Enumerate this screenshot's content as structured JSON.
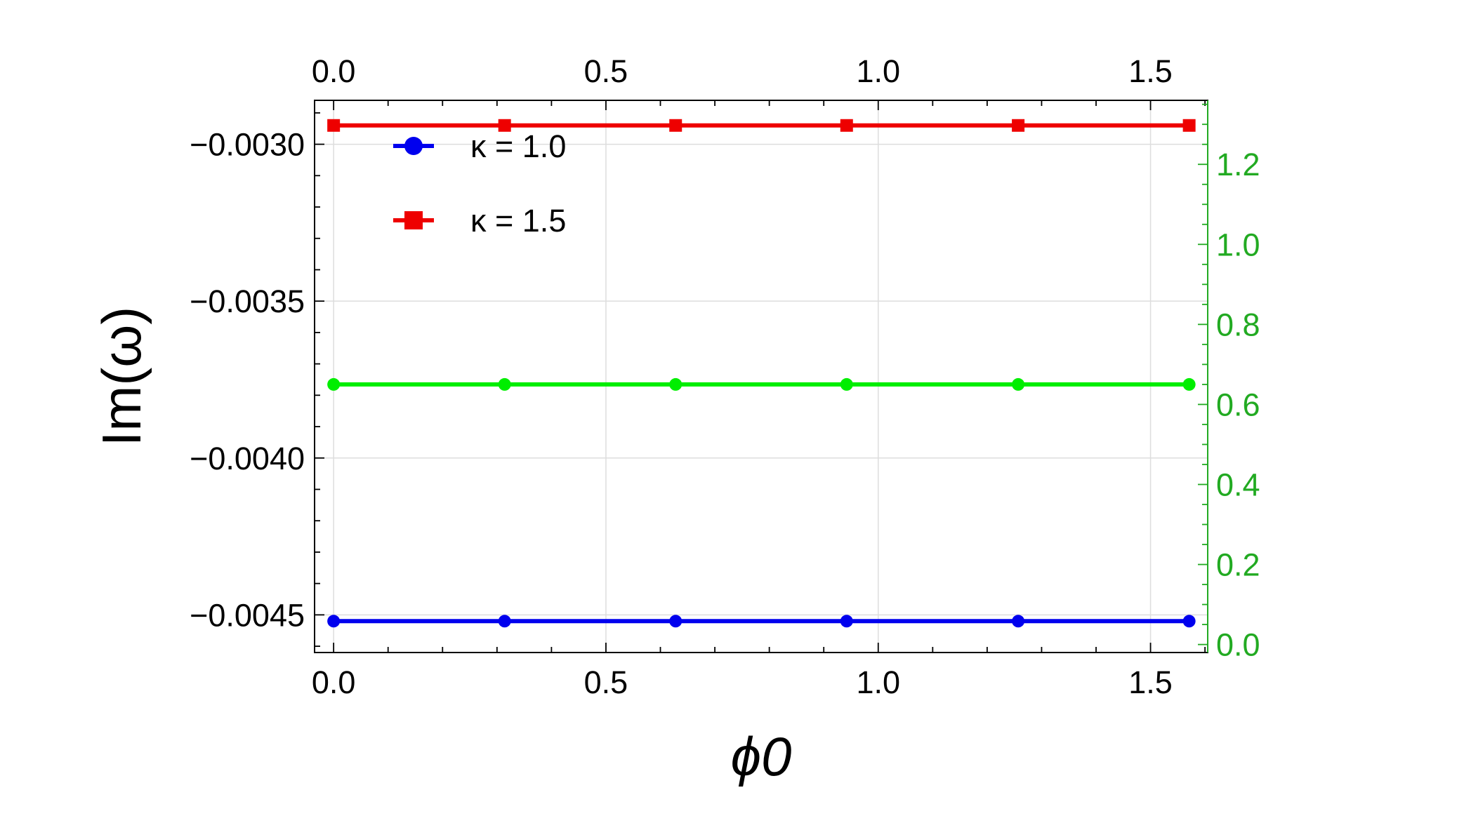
{
  "chart_data": {
    "type": "line",
    "xlabel": "ϕ0",
    "ylabel": "Im(ω)",
    "xlim": [
      -0.035,
      1.605
    ],
    "ylim": [
      -0.00462,
      -0.00286
    ],
    "y2lim": [
      -0.02,
      1.36
    ],
    "grid": true,
    "legend_position": "top-left",
    "x_ticks": [
      "0.0",
      "0.5",
      "1.0",
      "1.5"
    ],
    "x_tick_values": [
      0,
      0.5,
      1.0,
      1.5
    ],
    "x_top_ticks": [
      "0.0",
      "0.5",
      "1.0",
      "1.5"
    ],
    "y_ticks": [
      "−0.0030",
      "−0.0035",
      "−0.0040",
      "−0.0045"
    ],
    "y_tick_values": [
      -0.003,
      -0.0035,
      -0.004,
      -0.0045
    ],
    "y2_ticks": [
      "0.0",
      "0.2",
      "0.4",
      "0.6",
      "0.8",
      "1.0",
      "1.2"
    ],
    "y2_tick_values": [
      0,
      0.2,
      0.4,
      0.6,
      0.8,
      1.0,
      1.2
    ],
    "y2_color": "#22aa22",
    "x": [
      0,
      0.314,
      0.628,
      0.942,
      1.257,
      1.571
    ],
    "series": [
      {
        "name": "κ = 1.0",
        "axis": "left",
        "color": "#0000ee",
        "marker": "circle",
        "values": [
          -0.00452,
          -0.00452,
          -0.00452,
          -0.00452,
          -0.00452,
          -0.00452
        ]
      },
      {
        "name": "κ = 1.5",
        "axis": "left",
        "color": "#ee0000",
        "marker": "square",
        "values": [
          -0.00294,
          -0.00294,
          -0.00294,
          -0.00294,
          -0.00294,
          -0.00294
        ]
      },
      {
        "axis": "right",
        "color": "#00ee00",
        "marker": "circle",
        "values": [
          0.65,
          0.65,
          0.65,
          0.65,
          0.65,
          0.65
        ]
      }
    ]
  }
}
